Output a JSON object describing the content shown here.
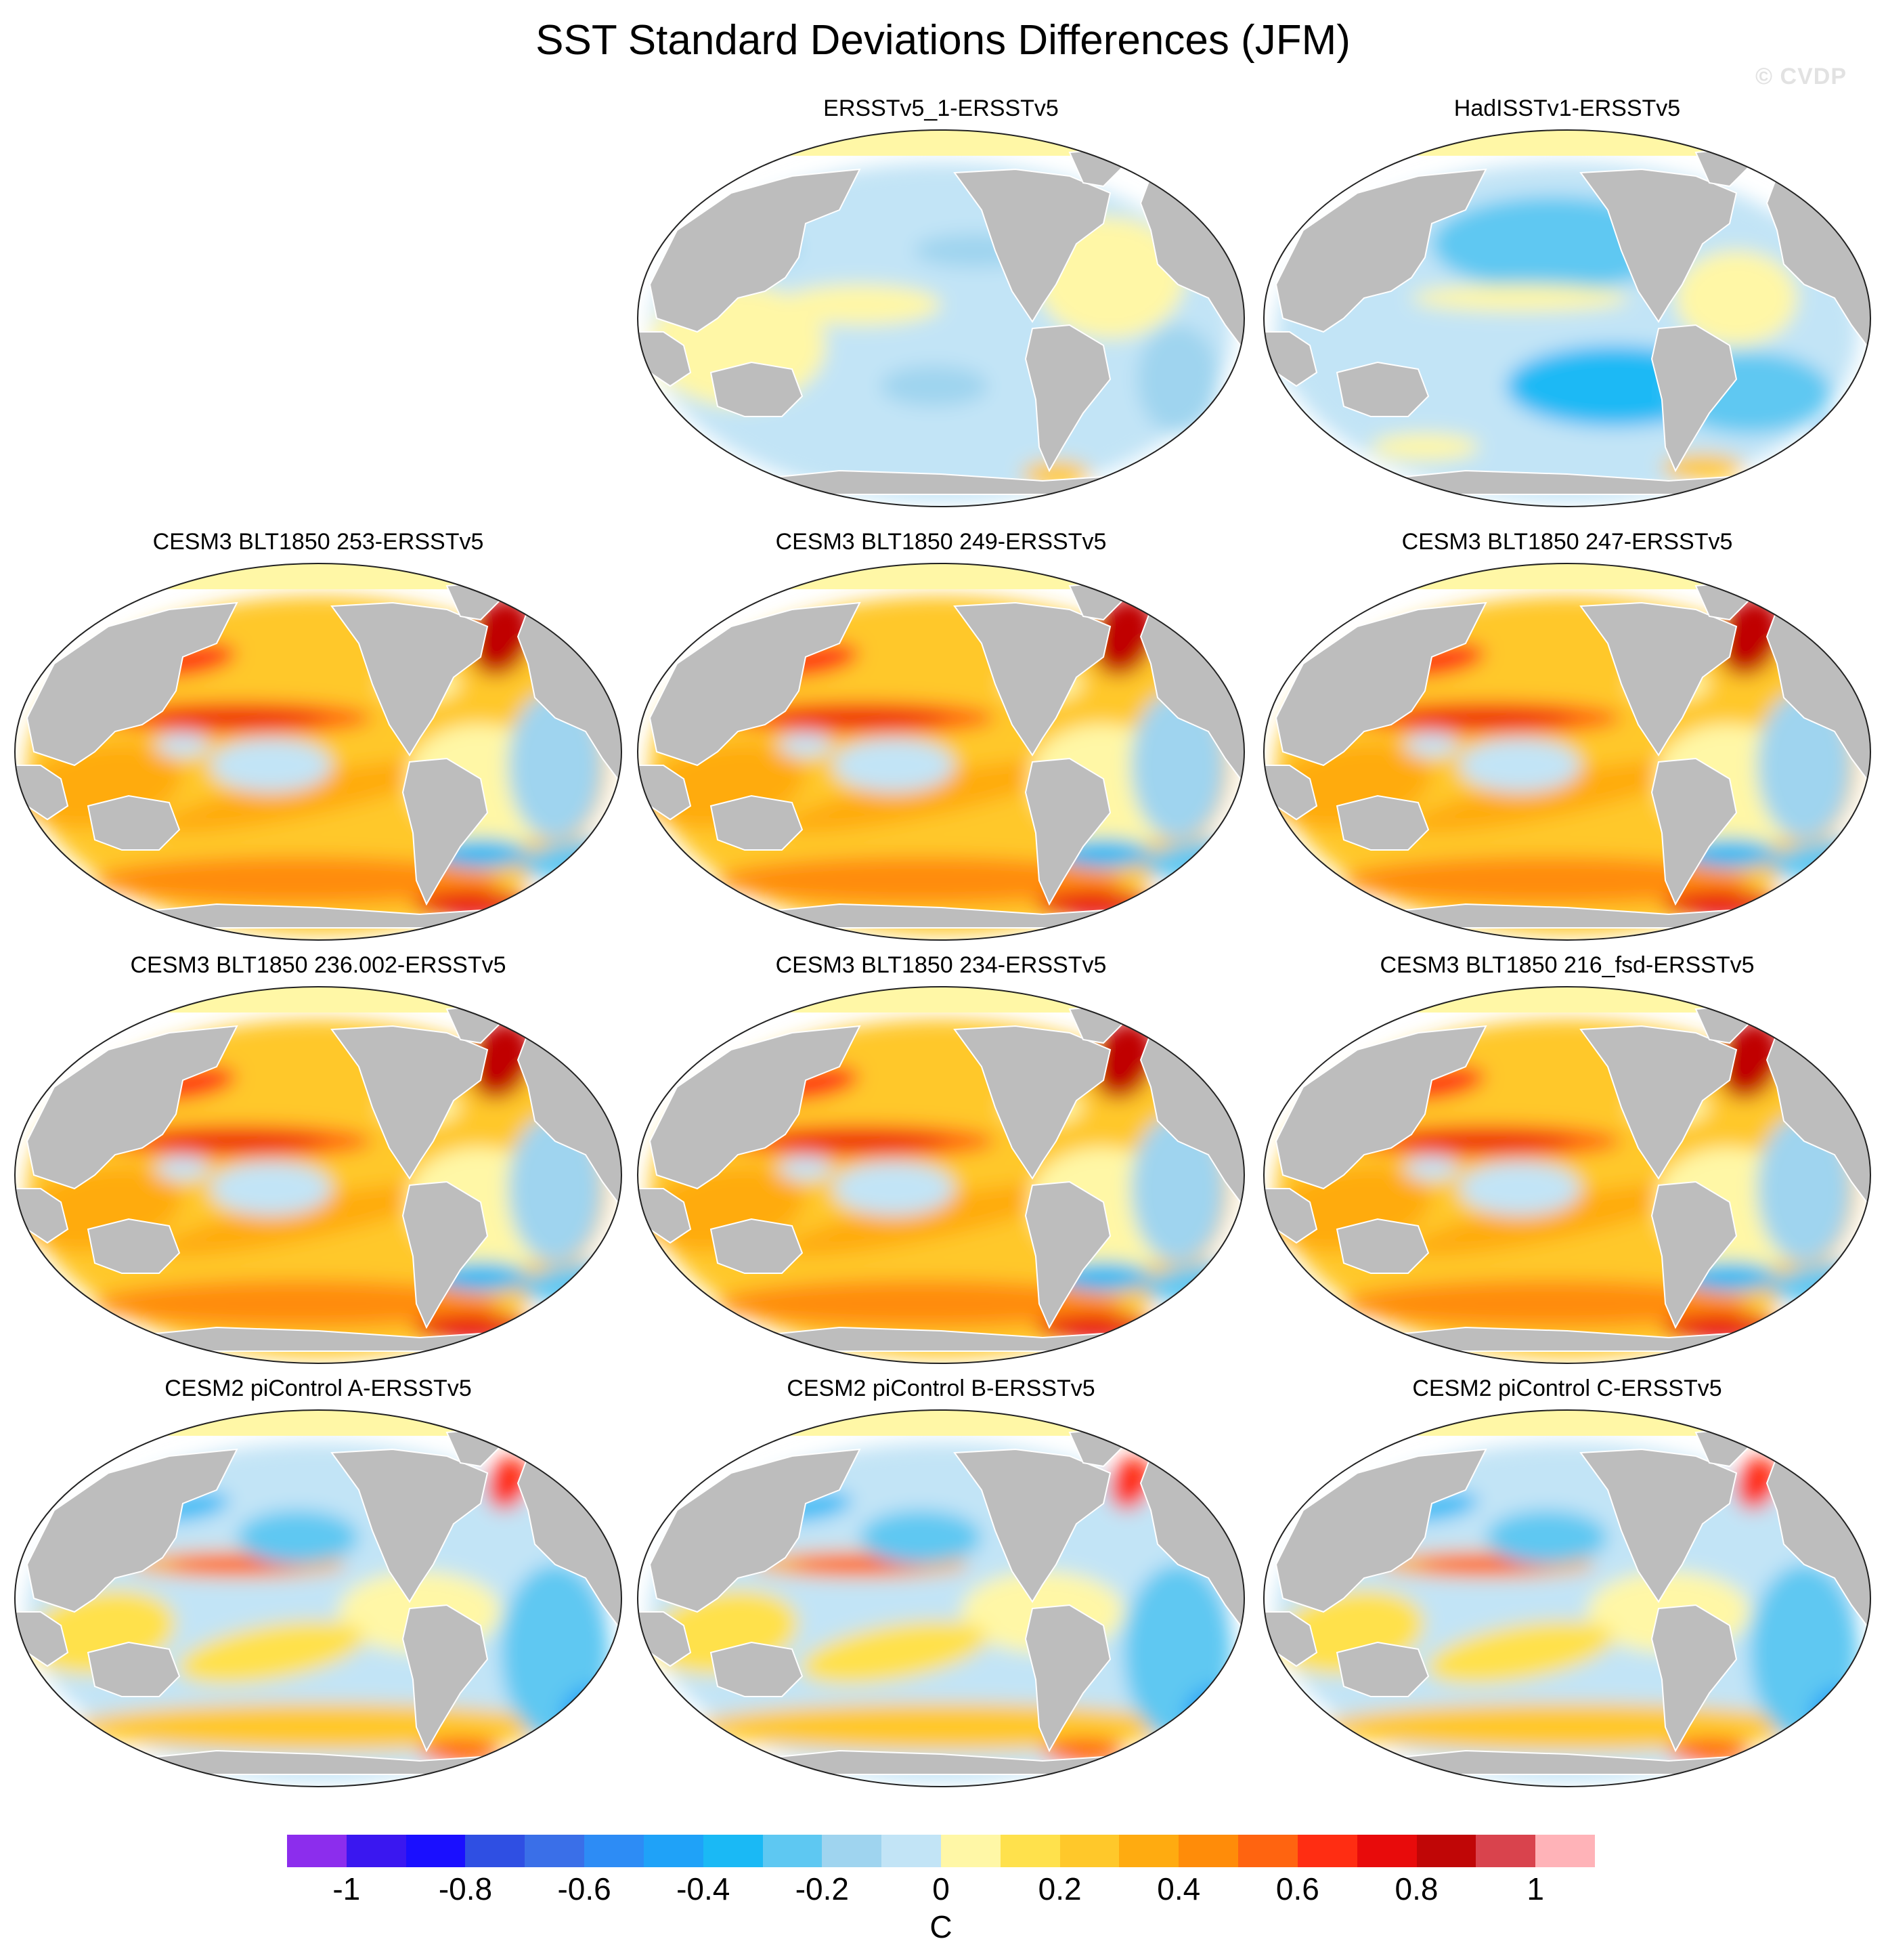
{
  "title": "SST Standard Deviations Differences (JFM)",
  "watermark": "© CVDP",
  "colors": {
    "land": "#bdbdbd",
    "seaice": "#fff7a6",
    "outline": "#222222"
  },
  "panels": [
    {
      "label": "ERSSTv5_1-ERSSTv5",
      "pattern": "small-diff"
    },
    {
      "label": "HadISSTv1-ERSSTv5",
      "pattern": "negative"
    },
    {
      "label": "CESM3 BLT1850 253-ERSSTv5",
      "pattern": "warm-strong"
    },
    {
      "label": "CESM3 BLT1850 249-ERSSTv5",
      "pattern": "warm-strong"
    },
    {
      "label": "CESM3 BLT1850 247-ERSSTv5",
      "pattern": "warm-strong"
    },
    {
      "label": "CESM3 BLT1850 236.002-ERSSTv5",
      "pattern": "warm-strong"
    },
    {
      "label": "CESM3 BLT1850 234-ERSSTv5",
      "pattern": "warm-strong"
    },
    {
      "label": "CESM3 BLT1850 216_fsd-ERSSTv5",
      "pattern": "warm-strong"
    },
    {
      "label": "CESM2 piControl A-ERSSTv5",
      "pattern": "mixed"
    },
    {
      "label": "CESM2 piControl B-ERSSTv5",
      "pattern": "mixed"
    },
    {
      "label": "CESM2 piControl C-ERSSTv5",
      "pattern": "mixed"
    }
  ],
  "colorbar": {
    "unit": "C",
    "colors": [
      "#8c2ded",
      "#3a17f0",
      "#1a0fff",
      "#2f4fe3",
      "#3a6fe8",
      "#2d8cf5",
      "#1fa2f8",
      "#1ab9f5",
      "#5ec8f2",
      "#9fd4ef",
      "#c2e4f6",
      "#fff7a6",
      "#ffe14c",
      "#ffc82a",
      "#ffab10",
      "#ff8c09",
      "#ff6410",
      "#ff2d12",
      "#e80b0b",
      "#c00606",
      "#d9434d",
      "#ffb3b8"
    ],
    "tick_labels": [
      "-1",
      "-0.8",
      "-0.6",
      "-0.4",
      "-0.2",
      "0",
      "0.2",
      "0.4",
      "0.6",
      "0.8",
      "1"
    ]
  }
}
